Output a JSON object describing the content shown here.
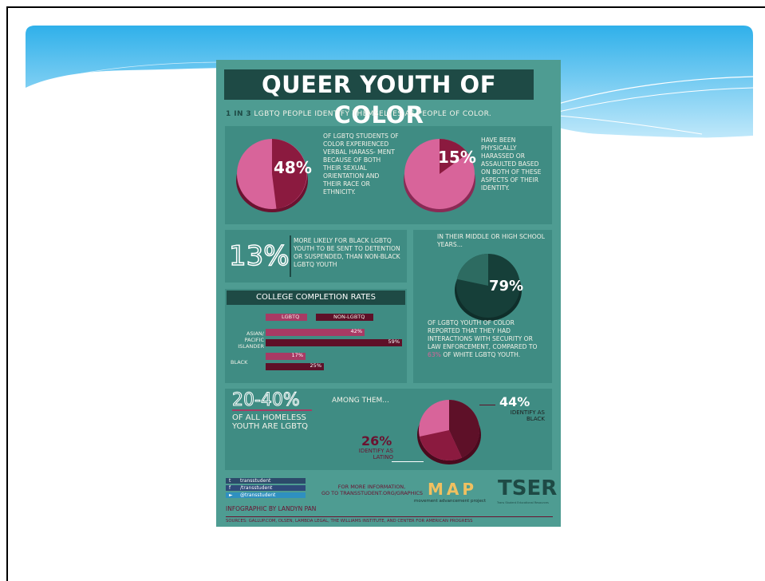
{
  "poster": {
    "title": "QUEER YOUTH OF COLOR",
    "subtitle_prefix": "1 IN 3",
    "subtitle_rest": "LGBTQ PEOPLE IDENTIFY THEMSELVES AS PEOPLE OF COLOR.",
    "stat1": {
      "value": "48%",
      "text": "OF LGBTQ STUDENTS OF COLOR EXPERIENCED VERBAL HARASS- MENT BECAUSE OF BOTH THEIR SEXUAL ORIENTATION AND THEIR RACE OR ETHNICITY."
    },
    "stat2": {
      "value": "15%",
      "text": "HAVE BEEN PHYSICALLY HARASSED OR ASSAULTED BASED ON BOTH OF THESE ASPECTS OF THEIR IDENTITY."
    },
    "stat3": {
      "value": "13%",
      "text": "MORE LIKELY FOR BLACK LGBTQ YOUTH TO BE SENT TO DETENTION OR SUSPENDED, THAN NON-BLACK LGBTQ YOUTH"
    },
    "stat4": {
      "intro": "IN THEIR MIDDLE OR HIGH SCHOOL YEARS...",
      "value": "79%",
      "text_a": "OF LGBTQ YOUTH OF COLOR REPORTED THAT THEY HAD INTERACTIONS WITH SECURITY OR LAW ENFORCEMENT, COMPARED TO",
      "hl": "63%",
      "text_b": "OF WHITE LGBTQ YOUTH."
    },
    "college": {
      "title": "COLLEGE COMPLETION RATES",
      "legend_lgbtq": "LGBTQ",
      "legend_non": "NON-LGBTQ",
      "groups": [
        {
          "label": "ASIAN/ PACIFIC ISLANDER",
          "lgbtq": "42%",
          "non": "59%"
        },
        {
          "label": "BLACK",
          "lgbtq": "17%",
          "non": "25%"
        }
      ]
    },
    "homeless": {
      "value": "20-40%",
      "text": "OF ALL HOMELESS YOUTH ARE LGBTQ",
      "among": "AMONG THEM...",
      "black_pct": "44%",
      "black_text": "IDENTIFY AS BLACK",
      "latino_pct": "26%",
      "latino_text": "IDENTIFY AS LATINO"
    },
    "social": [
      "transstudent",
      "/transstudent",
      "@transstudent"
    ],
    "more_info_1": "FOR MORE INFORMATION,",
    "more_info_2": "GO TO TRANSSTUDENT.ORG/GRAPHICS",
    "map_logo": "MAP",
    "map_caption": "movement advancement project",
    "tser_logo": "TSER",
    "tser_caption": "Trans Student Educational Resources",
    "credit": "INFOGRAPHIC BY LANDYN PAN",
    "sources": "SOURCES: GALLUP.COM, OLSEN, LAMBDA LEGAL, THE WILLIAMS INSTITUTE, AND CENTER FOR AMERICAN PROGRESS"
  },
  "colors": {
    "teal": "#4e9c92",
    "dark_teal": "#1e4a45",
    "pink": "#d8649a",
    "maroon": "#6b1230",
    "banner": "#3fb6ea"
  }
}
